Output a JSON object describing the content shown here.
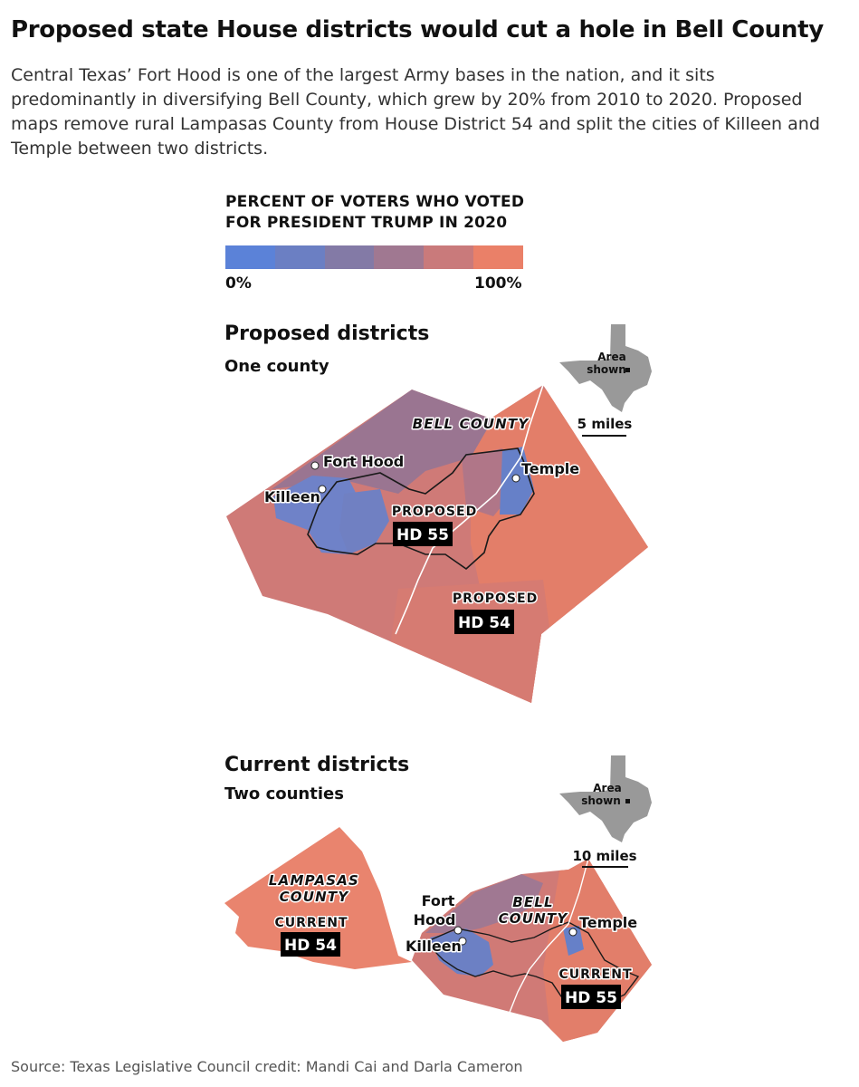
{
  "headline": "Proposed state House districts would cut a hole in Bell County",
  "dek": "Central Texas’ Fort Hood is one of the largest Army bases in the nation, and it sits predominantly in diversifying Bell County, which grew by 20% from 2010 to 2020. Proposed maps remove rural Lampasas County from House District 54 and split the cities of Killeen and Temple between two districts.",
  "legend": {
    "title_line1": "PERCENT OF VOTERS WHO VOTED",
    "title_line2": "FOR PRESIDENT TRUMP IN 2020",
    "min": "0%",
    "max": "100%",
    "colors": [
      "#5b82d8",
      "#6b7fc3",
      "#837aa6",
      "#a07891",
      "#c97a7b",
      "#ea8068"
    ]
  },
  "proposed": {
    "title": "Proposed districts",
    "subtitle": "One county",
    "county_label": "BELL COUNTY",
    "inset_line1": "Area",
    "inset_line2": "shown",
    "scale": "5 miles",
    "cities": {
      "fort_hood": "Fort Hood",
      "killeen": "Killeen",
      "temple": "Temple"
    },
    "district_a": {
      "status": "PROPOSED",
      "name": "HD 55"
    },
    "district_b": {
      "status": "PROPOSED",
      "name": "HD 54"
    }
  },
  "current": {
    "title": "Current districts",
    "subtitle": "Two counties",
    "lampasas_line1": "LAMPASAS",
    "lampasas_line2": "COUNTY",
    "bell_line1": "BELL",
    "bell_line2": "COUNTY",
    "inset_line1": "Area",
    "inset_line2": "shown",
    "scale": "10 miles",
    "cities": {
      "fort_line1": "Fort",
      "fort_line2": "Hood",
      "killeen": "Killeen",
      "temple": "Temple"
    },
    "district_a": {
      "status": "CURRENT",
      "name": "HD 54"
    },
    "district_b": {
      "status": "CURRENT",
      "name": "HD 55"
    }
  },
  "source": "Source: Texas Legislative Council credit: Mandi Cai and Darla Cameron"
}
